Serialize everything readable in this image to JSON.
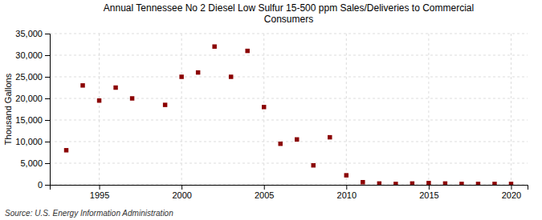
{
  "chart_data": {
    "type": "scatter",
    "title": "Annual Tennessee No 2 Diesel Low Sulfur 15-500 ppm Sales/Deliveries to Commercial\nConsumers",
    "ylabel": "Thousand Gallons",
    "annotations": [
      "Source: U.S. Energy Information Administration"
    ],
    "x": [
      1993,
      1994,
      1995,
      1996,
      1997,
      1999,
      2000,
      2001,
      2002,
      2003,
      2004,
      2005,
      2006,
      2007,
      2008,
      2009,
      2010,
      2011,
      2012,
      2013,
      2014,
      2015,
      2016,
      2017,
      2018,
      2019,
      2020
    ],
    "values": [
      8000,
      23000,
      19500,
      22500,
      20000,
      18500,
      25000,
      26000,
      32000,
      25000,
      31000,
      18000,
      9500,
      10500,
      4500,
      11000,
      2200,
      600,
      300,
      200,
      300,
      400,
      300,
      200,
      200,
      200,
      200
    ],
    "color": "#8b0000",
    "marker": "square",
    "xlim": [
      1992,
      2021
    ],
    "xticks": [
      1995,
      2000,
      2005,
      2010,
      2015,
      2020
    ],
    "ylim": [
      0,
      35000
    ],
    "yticks": [
      0,
      {
        "value": 5000,
        "label": "5,000"
      },
      {
        "value": 10000,
        "label": "10,000"
      },
      {
        "value": 15000,
        "label": "15,000"
      },
      {
        "value": 20000,
        "label": "20,000"
      },
      {
        "value": 25000,
        "label": "25,000"
      },
      {
        "value": 30000,
        "label": "30,000"
      },
      {
        "value": 35000,
        "label": "35,000"
      }
    ],
    "grid": true
  }
}
